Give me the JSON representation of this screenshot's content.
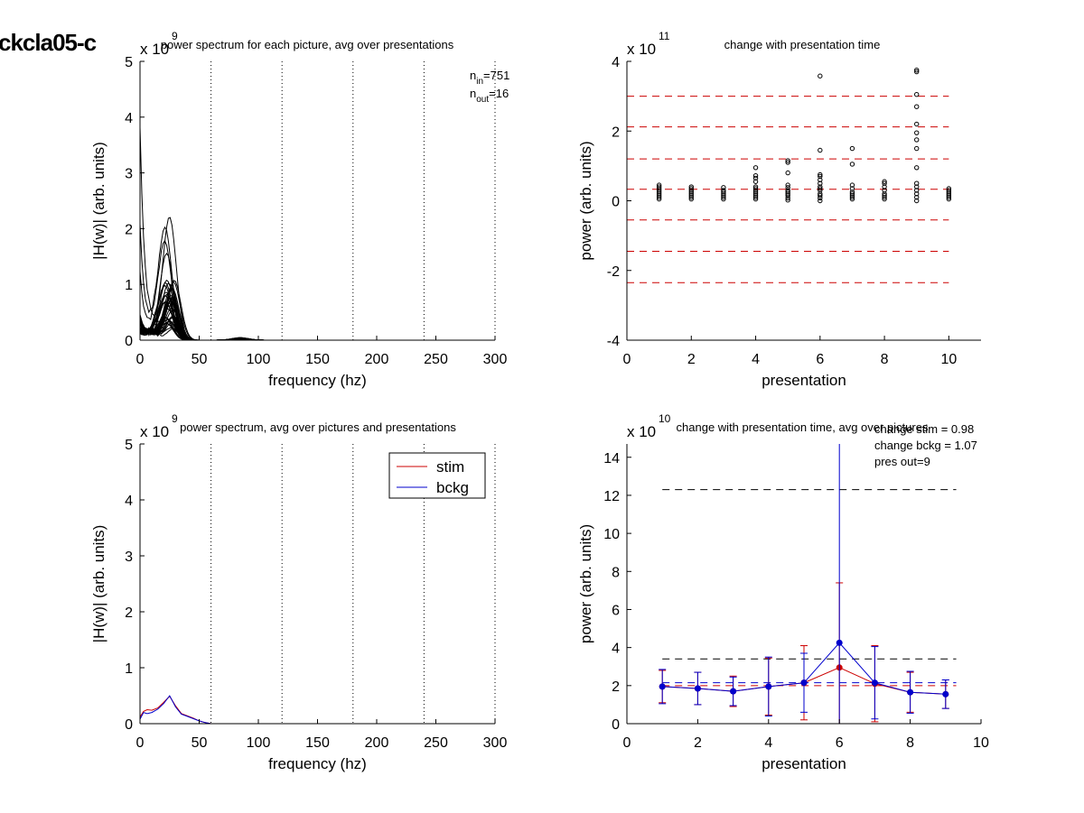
{
  "figure_title": "ckcla05-c",
  "chart_data": [
    {
      "type": "line",
      "title": "power spectrum for each picture, avg over presentations",
      "xlabel": "frequency (hz)",
      "ylabel": "|H(w)| (arb. units)",
      "xlim": [
        0,
        300
      ],
      "ylim": [
        0,
        5
      ],
      "y_multiplier": {
        "base": "x 10",
        "exponent": "9"
      },
      "x_ticks": [
        0,
        50,
        100,
        150,
        200,
        250,
        300
      ],
      "y_ticks": [
        0,
        1,
        2,
        3,
        4,
        5
      ],
      "vlines": [
        60,
        120,
        180,
        240,
        300
      ],
      "annotations": {
        "n_in_sym": "n",
        "n_in_sub": "in",
        "n_in_val": "=751",
        "n_out_sym": "n",
        "n_out_sub": "out",
        "n_out_val": "=16"
      },
      "line_color": "#000000",
      "peak_freq": 25,
      "max_peak": 2.2,
      "dc_max": 3.8,
      "series_count": 40
    },
    {
      "type": "scatter",
      "title": "change with presentation time",
      "xlabel": "presentation",
      "ylabel": "power (arb. units)",
      "xlim": [
        0,
        11
      ],
      "ylim": [
        -4,
        4
      ],
      "y_multiplier": {
        "base": "x 10",
        "exponent": "11"
      },
      "x_ticks": [
        0,
        2,
        4,
        6,
        8,
        10
      ],
      "y_ticks": [
        -4,
        -2,
        0,
        2,
        4
      ],
      "hlines": [
        3.0,
        2.12,
        1.2,
        0.33,
        -0.55,
        -1.45,
        -2.35
      ],
      "hline_color": "#cc0000",
      "points": [
        {
          "x": 1,
          "y": [
            0.05,
            0.1,
            0.15,
            0.2,
            0.25,
            0.3,
            0.35,
            0.4,
            0.45
          ]
        },
        {
          "x": 2,
          "y": [
            0.05,
            0.1,
            0.15,
            0.2,
            0.25,
            0.3,
            0.35,
            0.4
          ]
        },
        {
          "x": 3,
          "y": [
            0.05,
            0.1,
            0.15,
            0.2,
            0.25,
            0.3,
            0.38
          ]
        },
        {
          "x": 4,
          "y": [
            0.05,
            0.1,
            0.15,
            0.2,
            0.25,
            0.3,
            0.35,
            0.4,
            0.55,
            0.65,
            0.72,
            0.95
          ]
        },
        {
          "x": 5,
          "y": [
            0.02,
            0.08,
            0.15,
            0.2,
            0.25,
            0.3,
            0.38,
            0.45,
            0.8,
            1.1,
            1.15
          ]
        },
        {
          "x": 6,
          "y": [
            0.0,
            0.08,
            0.15,
            0.2,
            0.3,
            0.35,
            0.4,
            0.5,
            0.6,
            0.7,
            0.75,
            1.45,
            3.58
          ]
        },
        {
          "x": 7,
          "y": [
            0.05,
            0.1,
            0.15,
            0.2,
            0.25,
            0.35,
            0.45,
            1.05,
            1.5
          ]
        },
        {
          "x": 8,
          "y": [
            0.05,
            0.1,
            0.15,
            0.2,
            0.3,
            0.4,
            0.5,
            0.55
          ]
        },
        {
          "x": 9,
          "y": [
            0.0,
            0.1,
            0.2,
            0.3,
            0.4,
            0.5,
            0.95,
            1.5,
            1.75,
            1.95,
            2.2,
            2.7,
            3.05,
            3.7,
            3.75
          ]
        },
        {
          "x": 10,
          "y": [
            0.05,
            0.1,
            0.15,
            0.2,
            0.25,
            0.3,
            0.35
          ]
        }
      ]
    },
    {
      "type": "line",
      "title": "power spectrum, avg over pictures and presentations",
      "xlabel": "frequency (hz)",
      "ylabel": "|H(w)| (arb. units)",
      "xlim": [
        0,
        300
      ],
      "ylim": [
        0,
        5
      ],
      "y_multiplier": {
        "base": "x 10",
        "exponent": "9"
      },
      "x_ticks": [
        0,
        50,
        100,
        150,
        200,
        250,
        300
      ],
      "y_ticks": [
        0,
        1,
        2,
        3,
        4,
        5
      ],
      "vlines": [
        60,
        120,
        180,
        240,
        300
      ],
      "legend": "top-right",
      "series": [
        {
          "name": "stim",
          "color": "#cc0000",
          "x": [
            0,
            3,
            6,
            10,
            15,
            20,
            25,
            30,
            35,
            40,
            45,
            50,
            55,
            60,
            300
          ],
          "y": [
            0.12,
            0.22,
            0.25,
            0.24,
            0.28,
            0.38,
            0.49,
            0.32,
            0.18,
            0.14,
            0.1,
            0.05,
            0.02,
            0.0,
            0.0
          ]
        },
        {
          "name": "bckg",
          "color": "#0000cc",
          "x": [
            0,
            3,
            6,
            10,
            15,
            20,
            25,
            30,
            35,
            40,
            45,
            50,
            55,
            60,
            300
          ],
          "y": [
            0.08,
            0.2,
            0.18,
            0.2,
            0.26,
            0.36,
            0.5,
            0.3,
            0.17,
            0.13,
            0.09,
            0.05,
            0.02,
            0.0,
            0.0
          ]
        }
      ]
    },
    {
      "type": "line",
      "title": "change with presentation time, avg over pictures",
      "xlabel": "presentation",
      "ylabel": "power (arb. units)",
      "xlim": [
        0,
        10
      ],
      "ylim": [
        0,
        14.7
      ],
      "y_multiplier": {
        "base": "x 10",
        "exponent": "10"
      },
      "x_ticks": [
        0,
        2,
        4,
        6,
        8,
        10
      ],
      "y_ticks": [
        0,
        2,
        4,
        6,
        8,
        10,
        12,
        14
      ],
      "annotations": [
        "change stim = 0.98",
        "change bckg = 1.07",
        "pres out=9"
      ],
      "hlines": [
        {
          "y": 12.3,
          "color": "#000000"
        },
        {
          "y": 3.4,
          "color": "#000000"
        },
        {
          "y": 2.15,
          "color": "#0000cc"
        },
        {
          "y": 2.0,
          "color": "#cc0000"
        }
      ],
      "series": [
        {
          "name": "stim",
          "color": "#cc0000",
          "x": [
            1,
            2,
            3,
            4,
            5,
            6,
            7,
            8,
            9
          ],
          "y": [
            1.95,
            1.85,
            1.7,
            1.95,
            2.15,
            2.95,
            2.1,
            1.65,
            1.55
          ],
          "err": [
            0.85,
            0.85,
            0.8,
            1.5,
            1.95,
            4.45,
            2.0,
            1.05,
            0.75
          ]
        },
        {
          "name": "bckg",
          "color": "#0000cc",
          "x": [
            1,
            2,
            3,
            4,
            5,
            6,
            7,
            8,
            9
          ],
          "y": [
            1.95,
            1.85,
            1.7,
            1.95,
            2.15,
            4.25,
            2.15,
            1.65,
            1.55
          ],
          "err": [
            0.9,
            0.85,
            0.75,
            1.55,
            1.55,
            10.5,
            1.9,
            1.1,
            0.75
          ]
        }
      ]
    }
  ]
}
